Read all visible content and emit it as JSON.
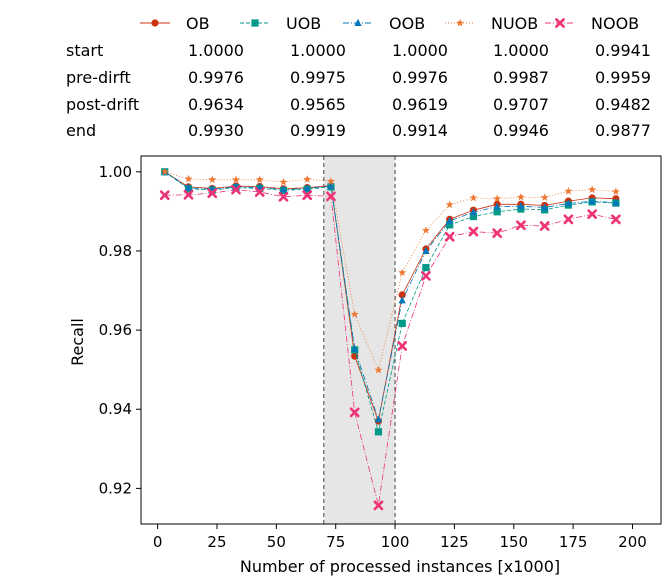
{
  "chart_data": {
    "type": "line",
    "xlabel": "Number of processed instances [x1000]",
    "ylabel": "Recall",
    "xlim": [
      -7,
      212
    ],
    "ylim": [
      0.911,
      1.004
    ],
    "xticks": [
      0,
      25,
      50,
      75,
      100,
      125,
      150,
      175,
      200
    ],
    "yticks": [
      0.92,
      0.94,
      0.96,
      0.98,
      1.0
    ],
    "ytick_labels": [
      "0.92",
      "0.94",
      "0.96",
      "0.98",
      "1.00"
    ],
    "grid": false,
    "legend_position": "top",
    "drift_region": {
      "start": 70,
      "end": 100,
      "fill": "#e6e6e6"
    },
    "table": {
      "row_labels": [
        "start",
        "pre-dirft",
        "post-drift",
        "end"
      ],
      "columns": [
        "OB",
        "UOB",
        "OOB",
        "NUOB",
        "NOOB"
      ],
      "cells": [
        [
          "1.0000",
          "1.0000",
          "1.0000",
          "1.0000",
          "0.9941"
        ],
        [
          "0.9976",
          "0.9975",
          "0.9976",
          "0.9987",
          "0.9959"
        ],
        [
          "0.9634",
          "0.9565",
          "0.9619",
          "0.9707",
          "0.9482"
        ],
        [
          "0.9930",
          "0.9919",
          "0.9914",
          "0.9946",
          "0.9877"
        ]
      ]
    },
    "x": [
      3,
      13,
      23,
      33,
      43,
      53,
      63,
      73,
      83,
      93,
      103,
      113,
      123,
      133,
      143,
      153,
      163,
      173,
      183,
      193
    ],
    "series": [
      {
        "name": "OB",
        "color": "#cc3311",
        "marker": "circle",
        "dash": "solid",
        "values": [
          1.0,
          0.9962,
          0.9958,
          0.9964,
          0.9963,
          0.9957,
          0.996,
          0.9965,
          0.9534,
          0.937,
          0.9689,
          0.9805,
          0.988,
          0.9903,
          0.9918,
          0.9918,
          0.9915,
          0.9926,
          0.9934,
          0.9932
        ]
      },
      {
        "name": "UOB",
        "color": "#009988",
        "marker": "square",
        "dash": "4,2",
        "values": [
          1.0,
          0.9957,
          0.9954,
          0.996,
          0.9958,
          0.9953,
          0.9956,
          0.9962,
          0.955,
          0.9343,
          0.9617,
          0.9758,
          0.9866,
          0.9887,
          0.9899,
          0.9906,
          0.9904,
          0.9916,
          0.9924,
          0.9921
        ]
      },
      {
        "name": "OOB",
        "color": "#0077bb",
        "marker": "triangle",
        "dash": "6,2,1,2",
        "values": [
          1.0,
          0.996,
          0.9956,
          0.9962,
          0.9961,
          0.9955,
          0.9958,
          0.9964,
          0.9552,
          0.9374,
          0.9675,
          0.98,
          0.9876,
          0.9898,
          0.9912,
          0.9913,
          0.991,
          0.992,
          0.9926,
          0.9922
        ]
      },
      {
        "name": "NUOB",
        "color": "#ee7733",
        "marker": "star",
        "dash": "1,2",
        "values": [
          1.0,
          0.9982,
          0.998,
          0.998,
          0.998,
          0.9974,
          0.9981,
          0.9976,
          0.964,
          0.9499,
          0.9745,
          0.9852,
          0.9917,
          0.9934,
          0.9932,
          0.9936,
          0.9935,
          0.9951,
          0.9955,
          0.995
        ]
      },
      {
        "name": "NOOB",
        "color": "#ee3377",
        "marker": "x",
        "dash": "6,2,1,2",
        "values": [
          0.9941,
          0.9942,
          0.9946,
          0.9955,
          0.9949,
          0.9937,
          0.9941,
          0.9938,
          0.9392,
          0.9157,
          0.956,
          0.9737,
          0.9836,
          0.9849,
          0.9845,
          0.9865,
          0.9863,
          0.988,
          0.9893,
          0.988
        ]
      }
    ]
  }
}
